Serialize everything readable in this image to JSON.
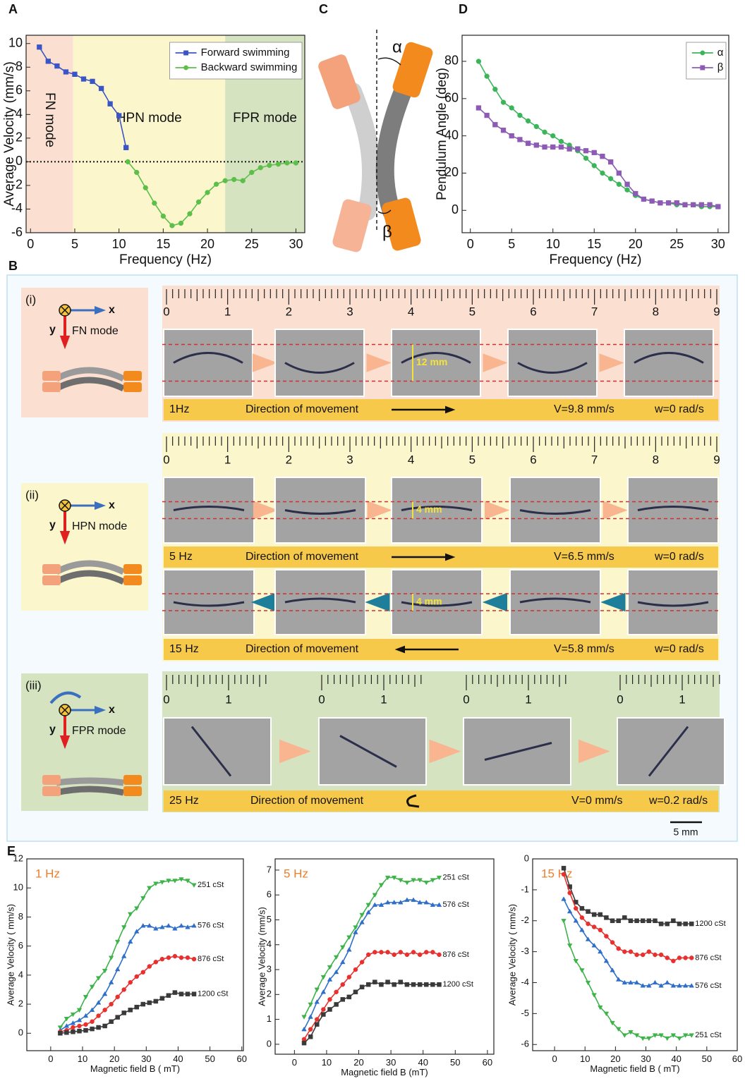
{
  "chart_data": [
    {
      "panel": "A",
      "type": "line",
      "xlabel": "Frequency (Hz)",
      "ylabel": "Average Velocity (mm/s)",
      "xlim": [
        -0.5,
        31
      ],
      "ylim": [
        -6,
        10.7
      ],
      "xticks": [
        0,
        5,
        10,
        15,
        20,
        25,
        30
      ],
      "yticks": [
        -6,
        -4,
        -2,
        0,
        2,
        4,
        6,
        8,
        10
      ],
      "hline": 0,
      "legend": "upper right",
      "regions": [
        {
          "label": "FN mode",
          "range": [
            -0.5,
            4.8
          ],
          "color": "#fbe0d2"
        },
        {
          "label": "HPN mode",
          "range": [
            4.8,
            22
          ],
          "color": "#fbf6cc"
        },
        {
          "label": "FPR mode",
          "range": [
            22,
            31
          ],
          "color": "#d5e3c0"
        }
      ],
      "series": [
        {
          "name": "Forward swimming",
          "color": "#3b55c6",
          "marker": "square",
          "x": [
            1,
            2,
            3,
            4,
            5,
            6,
            7,
            8,
            9,
            10,
            10.8
          ],
          "values": [
            9.7,
            8.5,
            8.1,
            7.6,
            7.4,
            7.0,
            6.8,
            6.2,
            4.9,
            3.9,
            1.2
          ]
        },
        {
          "name": "Backward swimming",
          "color": "#5cbf4a",
          "marker": "circle",
          "x": [
            11,
            12,
            13,
            14,
            15,
            16,
            17,
            18,
            19,
            20,
            21,
            22,
            23,
            24,
            25,
            26,
            27,
            28,
            29,
            30
          ],
          "values": [
            0,
            -0.9,
            -2.2,
            -3.5,
            -4.6,
            -5.4,
            -5.2,
            -4.4,
            -3.4,
            -2.6,
            -1.9,
            -1.6,
            -1.5,
            -1.6,
            -0.9,
            -0.5,
            -0.3,
            -0.2,
            -0.1,
            -0.1
          ]
        }
      ]
    },
    {
      "panel": "D",
      "type": "line",
      "xlabel": "Frequency (Hz)",
      "ylabel": "Pendulum Angle (deg)",
      "xlim": [
        -1,
        31.3
      ],
      "ylim": [
        -12,
        94
      ],
      "xticks": [
        0,
        5,
        10,
        15,
        20,
        25,
        30
      ],
      "yticks": [
        0,
        20,
        40,
        60,
        80
      ],
      "legend": "upper right",
      "series": [
        {
          "name": "α",
          "color": "#3cb55a",
          "marker": "circle",
          "x": [
            1,
            2,
            3,
            4,
            5,
            6,
            7,
            8,
            9,
            10,
            11,
            12,
            13,
            14,
            15,
            16,
            17,
            18,
            19,
            20,
            21,
            22,
            23,
            24,
            25,
            26,
            27,
            28,
            29,
            30
          ],
          "values": [
            80,
            72,
            65,
            58,
            55,
            51,
            48,
            45,
            42,
            40,
            37,
            35,
            32,
            28,
            24,
            20,
            17,
            14,
            11,
            8,
            6,
            5,
            4,
            4,
            3,
            3,
            3,
            2,
            2,
            2
          ]
        },
        {
          "name": "β",
          "color": "#8d5bb5",
          "marker": "square",
          "x": [
            1,
            2,
            3,
            4,
            5,
            6,
            7,
            8,
            9,
            10,
            11,
            12,
            13,
            14,
            15,
            16,
            17,
            18,
            19,
            20,
            21,
            22,
            23,
            24,
            25,
            26,
            27,
            28,
            29,
            30
          ],
          "values": [
            55,
            51,
            46,
            43,
            40,
            38,
            36,
            35,
            34,
            34,
            34,
            33,
            33,
            32,
            31,
            29,
            26,
            20,
            14,
            9,
            6,
            5,
            4,
            4,
            4,
            3,
            3,
            3,
            3,
            2
          ]
        }
      ]
    },
    {
      "panel": "E",
      "type": "line",
      "title": "1 Hz",
      "xlabel": "Magnetic field B ( mT)",
      "ylabel": "Average Velocity ( mm/s)",
      "xlim": [
        -7.5,
        60.5
      ],
      "ylim": [
        -1.2,
        12
      ],
      "xticks": [
        0,
        10,
        20,
        30,
        40,
        50,
        60
      ],
      "yticks": [
        0,
        2,
        4,
        6,
        8,
        10,
        12
      ],
      "x": [
        3,
        5,
        7,
        9,
        11,
        13,
        15,
        17,
        19,
        21,
        23,
        25,
        27,
        29,
        31,
        33,
        35,
        37,
        39,
        41,
        43,
        45
      ],
      "series": [
        {
          "name": "251 cSt",
          "color": "#3db34a",
          "marker": "triangle-down",
          "values": [
            0.4,
            1.0,
            1.3,
            1.6,
            2.5,
            3.2,
            3.8,
            4.3,
            5.2,
            6.3,
            7.3,
            8.2,
            8.6,
            9.3,
            10.0,
            10.3,
            10.4,
            10.5,
            10.5,
            10.6,
            10.5,
            10.2
          ]
        },
        {
          "name": "576 cSt",
          "color": "#2f6fc9",
          "marker": "triangle-up",
          "values": [
            0.2,
            0.5,
            0.7,
            0.9,
            1.2,
            1.6,
            2.1,
            2.7,
            3.5,
            4.4,
            5.3,
            6.3,
            7.0,
            7.4,
            7.4,
            7.2,
            7.3,
            7.4,
            7.2,
            7.4,
            7.3,
            7.4
          ]
        },
        {
          "name": "876 cSt",
          "color": "#e8312f",
          "marker": "circle",
          "values": [
            0.1,
            0.2,
            0.4,
            0.5,
            0.6,
            0.8,
            1.2,
            1.6,
            2.0,
            2.5,
            3.0,
            3.5,
            3.9,
            4.2,
            4.6,
            4.9,
            5.1,
            5.2,
            5.3,
            5.2,
            5.2,
            5.1
          ]
        },
        {
          "name": "1200 cSt",
          "color": "#3a3a3a",
          "marker": "square",
          "values": [
            0,
            0.05,
            0.1,
            0.15,
            0.2,
            0.3,
            0.4,
            0.5,
            0.8,
            1.1,
            1.4,
            1.6,
            1.8,
            2.0,
            2.1,
            2.2,
            2.4,
            2.6,
            2.8,
            2.7,
            2.7,
            2.7
          ]
        }
      ]
    },
    {
      "type": "line",
      "title": "5 Hz",
      "xlabel": "Magnetic field B (mT)",
      "ylabel": "Average Velocity (mm/s)",
      "xlim": [
        -6,
        62
      ],
      "ylim": [
        -0.4,
        7.45
      ],
      "xticks": [
        0,
        10,
        20,
        30,
        40,
        50,
        60
      ],
      "yticks": [
        0,
        1,
        2,
        3,
        4,
        5,
        6,
        7
      ],
      "x": [
        3,
        5,
        7,
        9,
        11,
        13,
        15,
        17,
        19,
        21,
        23,
        25,
        27,
        29,
        31,
        33,
        35,
        37,
        39,
        41,
        43,
        45
      ],
      "series": [
        {
          "name": "251 cSt",
          "color": "#3db34a",
          "marker": "triangle-down",
          "values": [
            1.1,
            1.6,
            2.2,
            2.7,
            3.1,
            3.5,
            3.9,
            4.3,
            4.7,
            5.2,
            5.6,
            6.0,
            6.4,
            6.7,
            6.7,
            6.6,
            6.5,
            6.6,
            6.6,
            6.5,
            6.6,
            6.7
          ]
        },
        {
          "name": "576 cSt",
          "color": "#2f6fc9",
          "marker": "triangle-up",
          "values": [
            0.6,
            1.1,
            1.7,
            2.1,
            2.6,
            2.9,
            3.3,
            3.8,
            4.5,
            4.9,
            5.3,
            5.6,
            5.6,
            5.7,
            5.7,
            5.7,
            5.8,
            5.8,
            5.7,
            5.7,
            5.6,
            5.6
          ]
        },
        {
          "name": "876 cSt",
          "color": "#e8312f",
          "marker": "circle",
          "values": [
            0.2,
            0.6,
            1.0,
            1.4,
            1.8,
            2.1,
            2.4,
            2.7,
            3.0,
            3.3,
            3.6,
            3.7,
            3.7,
            3.7,
            3.6,
            3.7,
            3.6,
            3.7,
            3.6,
            3.7,
            3.7,
            3.6
          ]
        },
        {
          "name": "1200 cSt",
          "color": "#3a3a3a",
          "marker": "square",
          "values": [
            0.05,
            0.3,
            0.8,
            1.2,
            1.4,
            1.6,
            1.8,
            1.9,
            2.1,
            2.3,
            2.4,
            2.5,
            2.4,
            2.5,
            2.4,
            2.5,
            2.4,
            2.4,
            2.4,
            2.4,
            2.4,
            2.4
          ]
        }
      ]
    },
    {
      "type": "line",
      "title": "15 Hz",
      "xlabel": "Magnetic field B ( mT)",
      "ylabel": "Average Velocity ( mm/s)",
      "xlim": [
        -7.2,
        60
      ],
      "ylim": [
        -6.2,
        0
      ],
      "xticks": [
        0,
        10,
        20,
        30,
        40,
        50,
        60
      ],
      "yticks": [
        -6,
        -5,
        -4,
        -3,
        -2,
        -1,
        0
      ],
      "x": [
        3,
        5,
        7,
        9,
        11,
        13,
        15,
        17,
        19,
        21,
        23,
        25,
        27,
        29,
        31,
        33,
        35,
        37,
        39,
        41,
        43,
        45
      ],
      "series": [
        {
          "name": "1200 cSt",
          "color": "#3a3a3a",
          "marker": "square",
          "values": [
            -0.3,
            -0.9,
            -1.4,
            -1.6,
            -1.7,
            -1.8,
            -1.8,
            -1.9,
            -2.0,
            -2.0,
            -1.9,
            -2.0,
            -2.0,
            -2.0,
            -2.0,
            -2.0,
            -2.1,
            -2.1,
            -2.0,
            -2.1,
            -2.1,
            -2.1
          ]
        },
        {
          "name": "876 cSt",
          "color": "#e8312f",
          "marker": "circle",
          "values": [
            -0.5,
            -1.1,
            -1.6,
            -1.9,
            -2.1,
            -2.2,
            -2.3,
            -2.5,
            -2.7,
            -2.9,
            -3.0,
            -3.0,
            -3.1,
            -3.1,
            -3.0,
            -3.1,
            -3.1,
            -3.2,
            -3.3,
            -3.2,
            -3.2,
            -3.2
          ]
        },
        {
          "name": "576 cSt",
          "color": "#2f6fc9",
          "marker": "triangle-up",
          "values": [
            -1.3,
            -1.7,
            -2.0,
            -2.3,
            -2.6,
            -2.8,
            -3.0,
            -3.3,
            -3.6,
            -3.9,
            -4.0,
            -4.0,
            -4.0,
            -4.1,
            -4.1,
            -4.0,
            -4.1,
            -4.0,
            -4.1,
            -4.1,
            -4.1,
            -4.1
          ]
        },
        {
          "name": "251 cSt",
          "color": "#3db34a",
          "marker": "triangle-down",
          "values": [
            -2.0,
            -2.8,
            -3.3,
            -3.6,
            -4.0,
            -4.4,
            -4.8,
            -5.0,
            -5.3,
            -5.5,
            -5.7,
            -5.6,
            -5.7,
            -5.8,
            -5.8,
            -5.7,
            -5.7,
            -5.8,
            -5.7,
            -5.8,
            -5.7,
            -5.7
          ]
        }
      ]
    }
  ],
  "panel_c": {
    "panel": "C",
    "alpha": "α",
    "beta": "β"
  },
  "panel_b": {
    "panel": "B",
    "scale_bar": "5 mm",
    "rows": [
      {
        "label": "(i)",
        "x_axis": "x",
        "y_axis": "y",
        "mode": "FN mode",
        "ruler": [
          0,
          1,
          2,
          3,
          4,
          5,
          6,
          7,
          8,
          9
        ],
        "strips": [
          {
            "amplitude": "12 mm",
            "frequency": "1Hz",
            "direction": "Direction of movement",
            "velocity": "V=9.8 mm/s",
            "rotation": "w=0 rad/s"
          }
        ]
      },
      {
        "label": "(ii)",
        "x_axis": "x",
        "y_axis": "y",
        "mode": "HPN mode",
        "ruler": [
          0,
          1,
          2,
          3,
          4,
          5,
          6,
          7,
          8,
          9
        ],
        "strips": [
          {
            "amplitude": "4 mm",
            "frequency": "5 Hz",
            "direction": "Direction of movement",
            "velocity": "V=6.5 mm/s",
            "rotation": "w=0 rad/s"
          },
          {
            "amplitude": "4 mm",
            "frequency": "15 Hz",
            "direction": "Direction of movement",
            "velocity": "V=5.8 mm/s",
            "rotation": "w=0 rad/s"
          }
        ]
      },
      {
        "label": "(iii)",
        "x_axis": "x",
        "y_axis": "y",
        "mode": "FPR mode",
        "ruler": [
          0,
          1
        ],
        "strips": [
          {
            "frequency": "25 Hz",
            "direction": "Direction of movement",
            "velocity": "V=0 mm/s",
            "rotation": "w=0.2 rad/s"
          }
        ]
      }
    ]
  }
}
